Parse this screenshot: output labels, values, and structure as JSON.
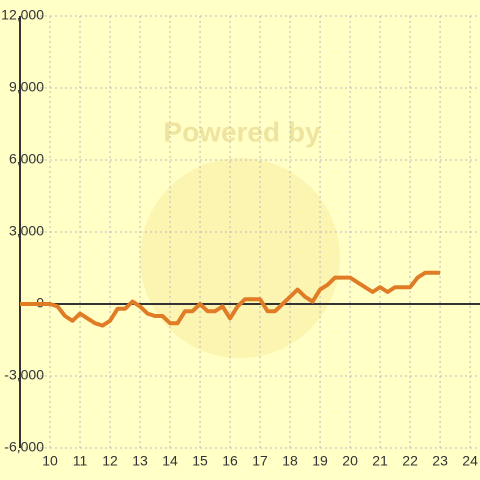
{
  "chart_data": {
    "type": "line",
    "watermark": "Powered by",
    "series": [
      {
        "color": "#e07b26",
        "x": [
          9,
          9.25,
          9.5,
          9.75,
          10,
          10.25,
          10.5,
          10.75,
          11,
          11.25,
          11.5,
          11.75,
          12,
          12.25,
          12.5,
          12.75,
          13,
          13.25,
          13.5,
          13.75,
          14,
          14.25,
          14.5,
          14.75,
          15,
          15.25,
          15.5,
          15.75,
          16,
          16.25,
          16.5,
          16.75,
          17,
          17.25,
          17.5,
          17.75,
          18,
          18.25,
          18.5,
          18.75,
          19,
          19.25,
          19.5,
          19.75,
          20,
          20.25,
          20.5,
          20.75,
          21,
          21.25,
          21.5,
          21.75,
          22,
          22.25,
          22.5,
          22.75,
          23
        ],
        "values": [
          0,
          0,
          0,
          0,
          0,
          -100,
          -500,
          -700,
          -400,
          -600,
          -800,
          -900,
          -700,
          -200,
          -200,
          100,
          -100,
          -400,
          -500,
          -500,
          -800,
          -800,
          -300,
          -300,
          0,
          -300,
          -300,
          -100,
          -600,
          -100,
          200,
          200,
          200,
          -300,
          -300,
          0,
          300,
          600,
          300,
          100,
          600,
          800,
          1100,
          1100,
          1100,
          900,
          700,
          500,
          700,
          500,
          700,
          700,
          700,
          1100,
          1300,
          1300,
          1300
        ]
      }
    ],
    "xlim": [
      9,
      24.33
    ],
    "ylim": [
      -6000,
      12000
    ],
    "xticks": [
      10,
      11,
      12,
      13,
      14,
      15,
      16,
      17,
      18,
      19,
      20,
      21,
      22,
      23,
      24
    ],
    "yticks": [
      {
        "value": 12000,
        "label": "12,000"
      },
      {
        "value": 9000,
        "label": "9,000"
      },
      {
        "value": 6000,
        "label": "6,000"
      },
      {
        "value": 3000,
        "label": "3,000"
      },
      0,
      {
        "value": -3000,
        "label": "-3,000"
      },
      {
        "value": -6000,
        "label": "-6,000"
      }
    ],
    "grid": true
  }
}
